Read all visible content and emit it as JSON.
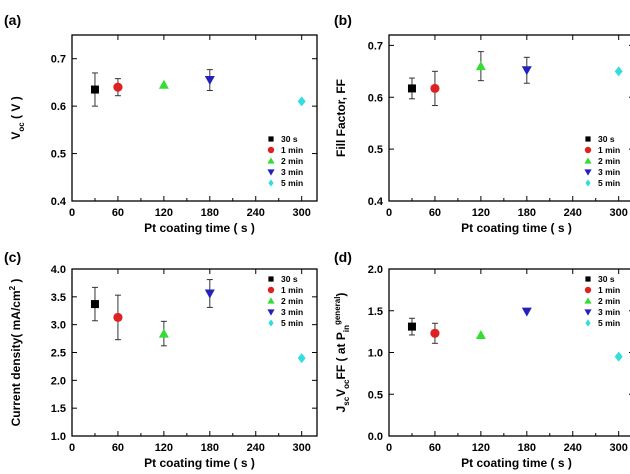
{
  "chart_data": [
    {
      "type": "scatter",
      "panel_label": "(a)",
      "xlabel": "Pt coating time ( s )",
      "ylabel": "V",
      "ylabel_sub": "oc",
      "ylabel_suffix": " ( V )",
      "xlim": [
        0,
        320
      ],
      "ylim": [
        0.4,
        0.75
      ],
      "xticks": [
        0,
        60,
        120,
        180,
        240,
        300
      ],
      "yticks": [
        0.4,
        0.5,
        0.6,
        0.7
      ],
      "legend_position": "bottom-right",
      "series": [
        {
          "name": "30 s",
          "color": "#000000",
          "marker": "square",
          "x": [
            30
          ],
          "y": [
            0.635
          ],
          "err": [
            0.035
          ]
        },
        {
          "name": "1 min",
          "color": "#dd2222",
          "marker": "circle",
          "x": [
            60
          ],
          "y": [
            0.64
          ],
          "err": [
            0.018
          ]
        },
        {
          "name": "2 min",
          "color": "#33dd33",
          "marker": "triangle-up",
          "x": [
            120
          ],
          "y": [
            0.645
          ],
          "err": [
            0.0
          ]
        },
        {
          "name": "3 min",
          "color": "#2222bb",
          "marker": "triangle-down",
          "x": [
            180
          ],
          "y": [
            0.655
          ],
          "err": [
            0.022
          ]
        },
        {
          "name": "5 min",
          "color": "#33dddd",
          "marker": "diamond",
          "x": [
            300
          ],
          "y": [
            0.61
          ],
          "err": [
            0.0
          ]
        }
      ]
    },
    {
      "type": "scatter",
      "panel_label": "(b)",
      "xlabel": "Pt coating time ( s )",
      "ylabel": "Fill Factor, FF",
      "xlim": [
        0,
        320
      ],
      "ylim": [
        0.4,
        0.72
      ],
      "xticks": [
        0,
        60,
        120,
        180,
        240,
        300
      ],
      "yticks": [
        0.4,
        0.5,
        0.6,
        0.7
      ],
      "legend_position": "bottom-right",
      "series": [
        {
          "name": "30 s",
          "color": "#000000",
          "marker": "square",
          "x": [
            30
          ],
          "y": [
            0.617
          ],
          "err": [
            0.02
          ]
        },
        {
          "name": "1 min",
          "color": "#dd2222",
          "marker": "circle",
          "x": [
            60
          ],
          "y": [
            0.617
          ],
          "err": [
            0.033
          ]
        },
        {
          "name": "2 min",
          "color": "#33dd33",
          "marker": "triangle-up",
          "x": [
            120
          ],
          "y": [
            0.66
          ],
          "err": [
            0.028
          ]
        },
        {
          "name": "3 min",
          "color": "#2222bb",
          "marker": "triangle-down",
          "x": [
            180
          ],
          "y": [
            0.652
          ],
          "err": [
            0.025
          ]
        },
        {
          "name": "5 min",
          "color": "#33dddd",
          "marker": "diamond",
          "x": [
            300
          ],
          "y": [
            0.65
          ],
          "err": [
            0.0
          ]
        }
      ]
    },
    {
      "type": "scatter",
      "panel_label": "(c)",
      "xlabel": "Pt coating time ( s )",
      "ylabel": "Current density( mA/cm",
      "ylabel_sup": "2",
      "ylabel_suffix": " )",
      "xlim": [
        0,
        320
      ],
      "ylim": [
        1.0,
        4.0
      ],
      "xticks": [
        0,
        60,
        120,
        180,
        240,
        300
      ],
      "yticks": [
        1.0,
        1.5,
        2.0,
        2.5,
        3.0,
        3.5,
        4.0
      ],
      "legend_position": "top-right",
      "series": [
        {
          "name": "30 s",
          "color": "#000000",
          "marker": "square",
          "x": [
            30
          ],
          "y": [
            3.37
          ],
          "err": [
            0.3
          ]
        },
        {
          "name": "1 min",
          "color": "#dd2222",
          "marker": "circle",
          "x": [
            60
          ],
          "y": [
            3.13
          ],
          "err": [
            0.4
          ]
        },
        {
          "name": "2 min",
          "color": "#33dd33",
          "marker": "triangle-up",
          "x": [
            120
          ],
          "y": [
            2.84
          ],
          "err": [
            0.22
          ]
        },
        {
          "name": "3 min",
          "color": "#2222bb",
          "marker": "triangle-down",
          "x": [
            180
          ],
          "y": [
            3.56
          ],
          "err": [
            0.25
          ]
        },
        {
          "name": "5 min",
          "color": "#33dddd",
          "marker": "diamond",
          "x": [
            300
          ],
          "y": [
            2.4
          ],
          "err": [
            0.0
          ]
        }
      ]
    },
    {
      "type": "scatter",
      "panel_label": "(d)",
      "xlabel": "Pt coating time ( s )",
      "ylabel": "J",
      "ylabel_sub": "sc",
      "ylabel_mid": "V",
      "ylabel_sub2": "oc",
      "ylabel_mid2": "FF ( at P",
      "ylabel_sub3": "in",
      "ylabel_sup": "general",
      "ylabel_suffix": ")",
      "xlim": [
        0,
        320
      ],
      "ylim": [
        0.0,
        2.0
      ],
      "xticks": [
        0,
        60,
        120,
        180,
        240,
        300
      ],
      "yticks": [
        0.0,
        0.5,
        1.0,
        1.5,
        2.0
      ],
      "legend_position": "top-right",
      "series": [
        {
          "name": "30 s",
          "color": "#000000",
          "marker": "square",
          "x": [
            30
          ],
          "y": [
            1.31
          ],
          "err": [
            0.1
          ]
        },
        {
          "name": "1 min",
          "color": "#dd2222",
          "marker": "circle",
          "x": [
            60
          ],
          "y": [
            1.23
          ],
          "err": [
            0.12
          ]
        },
        {
          "name": "2 min",
          "color": "#33dd33",
          "marker": "triangle-up",
          "x": [
            120
          ],
          "y": [
            1.21
          ],
          "err": [
            0.0
          ]
        },
        {
          "name": "3 min",
          "color": "#2222bb",
          "marker": "triangle-down",
          "x": [
            180
          ],
          "y": [
            1.49
          ],
          "err": [
            0.0
          ]
        },
        {
          "name": "5 min",
          "color": "#33dddd",
          "marker": "diamond",
          "x": [
            300
          ],
          "y": [
            0.95
          ],
          "err": [
            0.0
          ]
        }
      ]
    }
  ]
}
